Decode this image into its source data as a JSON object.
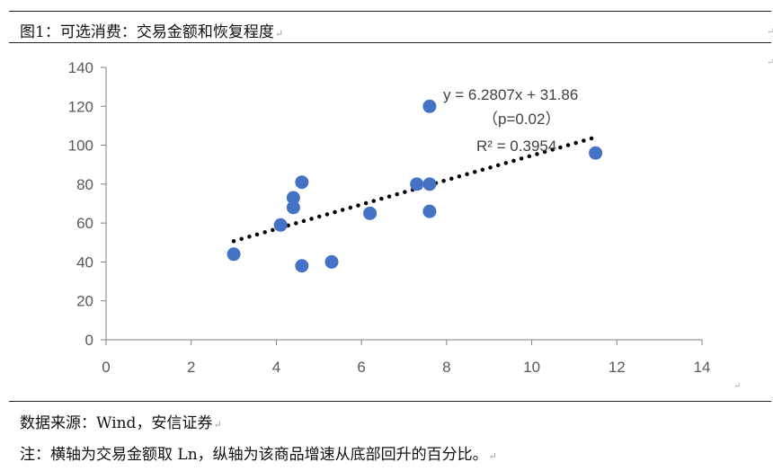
{
  "figure": {
    "title": "图1：可选消费：交易金额和恢复程度",
    "source": "数据来源：Wind，安信证券",
    "note": "注：横轴为交易金额取 Ln，纵轴为该商品增速从底部回升的百分比。",
    "return_mark": "↵"
  },
  "chart_data": {
    "type": "scatter",
    "title": "可选消费：交易金额和恢复程度",
    "xlabel": "",
    "ylabel": "",
    "xlim": [
      0,
      14
    ],
    "ylim": [
      0,
      140
    ],
    "xticks": [
      0,
      2,
      4,
      6,
      8,
      10,
      12,
      14
    ],
    "yticks": [
      0,
      20,
      40,
      60,
      80,
      100,
      120,
      140
    ],
    "grid": false,
    "marker_color": "#4472C4",
    "trend_color": "#000000",
    "points": [
      {
        "x": 3.0,
        "y": 44
      },
      {
        "x": 4.1,
        "y": 59
      },
      {
        "x": 4.4,
        "y": 68
      },
      {
        "x": 4.4,
        "y": 73
      },
      {
        "x": 4.6,
        "y": 81
      },
      {
        "x": 4.6,
        "y": 38
      },
      {
        "x": 5.3,
        "y": 40
      },
      {
        "x": 6.2,
        "y": 65
      },
      {
        "x": 7.3,
        "y": 80
      },
      {
        "x": 7.6,
        "y": 80
      },
      {
        "x": 7.6,
        "y": 66
      },
      {
        "x": 7.6,
        "y": 120
      },
      {
        "x": 11.5,
        "y": 96
      }
    ],
    "trendline": {
      "slope": 6.2807,
      "intercept": 31.86,
      "x_start": 3.0,
      "x_end": 11.5
    },
    "annotations": {
      "equation": "y = 6.2807x + 31.86",
      "p_value": "（p=0.02）",
      "r_squared": "R² = 0.3954"
    }
  }
}
